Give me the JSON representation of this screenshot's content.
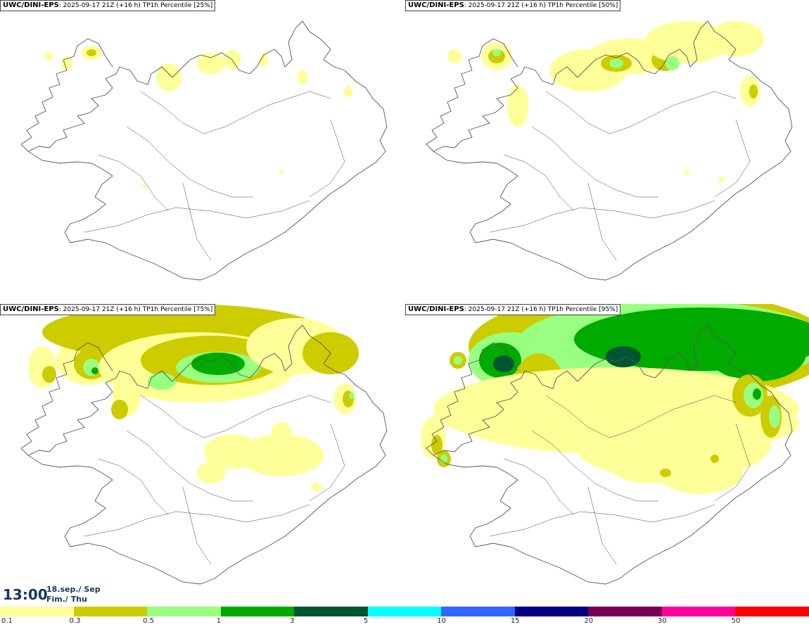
{
  "panels": [
    {
      "model": "UWC/DINI-EPS",
      "info": ": 2025-09-17 21Z (+16 h) TP1h Percentile [25%]",
      "level": 0
    },
    {
      "model": "UWC/DINI-EPS",
      "info": ": 2025-09-17 21Z (+16 h) TP1h Percentile [50%]",
      "level": 1
    },
    {
      "model": "UWC/DINI-EPS",
      "info": ": 2025-09-17 21Z (+16 h) TP1h Percentile [75%]",
      "level": 2
    },
    {
      "model": "UWC/DINI-EPS",
      "info": ": 2025-09-17 21Z (+16 h) TP1h Percentile [95%]",
      "level": 3
    }
  ],
  "time": {
    "clock": "13:00",
    "date_line1": "18.sep./ Sep",
    "date_line2": "Fim./ Thu"
  },
  "legend": {
    "colors": [
      "#ffff99",
      "#cccc00",
      "#99ff80",
      "#00aa00",
      "#005533",
      "#00ffff",
      "#3366ff",
      "#000080",
      "#770055",
      "#ff0099",
      "#ff0000"
    ],
    "labels": [
      "0.1",
      "0.3",
      "0.5",
      "1",
      "3",
      "5",
      "10",
      "15",
      "20",
      "30",
      "50"
    ]
  },
  "colors": {
    "land_outline": "#555555",
    "roads": "#444444"
  }
}
